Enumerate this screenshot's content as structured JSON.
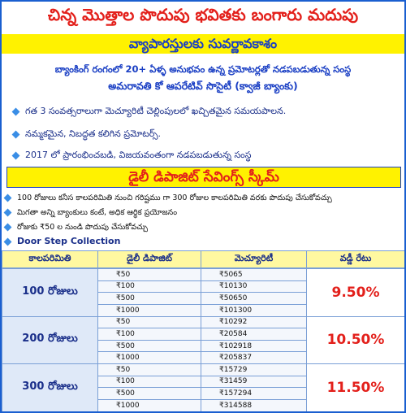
{
  "header": {
    "title": "చిన్న మొత్తాల పొదుపు భవితకు బంగారు మదుపు",
    "subtitle": "వ్యాపారస్తులకు సువర్ణావకాశం",
    "intro": [
      "బ్యాంకింగ్ రంగంలో 20+ ఏళ్ళ అనుభవం ఉన్న ప్రమోటర్లతో నడపబడుతున్న సంస్థ",
      "అమరావతి కో ఆపరేటివ్ సొసైటీ (క్వాజీ బ్యాంకు)"
    ],
    "highlights": [
      "గత 3 సంవత్సరాలుగా మెచ్యూరిటీ చెల్లింపులలో ఖచ్చితమైన సమయపాలన.",
      "నమ్మకమైన, నిబద్ధత కలిగిన ప్రమోటర్స్.",
      "2017 లో ప్రారంభించబడి, విజయవంతంగా నడపబడుతున్న సంస్థ"
    ]
  },
  "scheme": {
    "title": "డైలీ డిపాజిట్ సేవింగ్స్ స్కీమ్",
    "features": [
      "100 రోజులు కనీస కాలపరిమితి నుంచి గరిష్టము గా 300 రోజుల కాలపరిమితి వరకు పొదుపు చేసుకోవచ్చు",
      "మిగతా అన్ని బ్యాంకులు కంటే, అధిక ఆర్థిక ప్రయోజనం",
      "రోజుకు ₹50 ల నుండి పొదుపు చేసుకోవచ్చు",
      "Door Step Collection"
    ]
  },
  "table": {
    "columns": [
      "కాలపరిమితి",
      "డైలీ డిపాజిట్",
      "మెచ్యూరిటీ",
      "వడ్డీ రేటు"
    ],
    "rows": [
      {
        "period": "100 రోజులు",
        "rate": "9.50%",
        "plans": [
          [
            "₹50",
            "₹5065"
          ],
          [
            "₹100",
            "₹10130"
          ],
          [
            "₹500",
            "₹50650"
          ],
          [
            "₹1000",
            "₹101300"
          ]
        ]
      },
      {
        "period": "200 రోజులు",
        "rate": "10.50%",
        "plans": [
          [
            "₹50",
            "₹10292"
          ],
          [
            "₹100",
            "₹20584"
          ],
          [
            "₹500",
            "₹102918"
          ],
          [
            "₹1000",
            "₹205837"
          ]
        ]
      },
      {
        "period": "300 రోజులు",
        "rate": "11.50%",
        "plans": [
          [
            "₹50",
            "₹15729"
          ],
          [
            "₹100",
            "₹31459"
          ],
          [
            "₹500",
            "₹157294"
          ],
          [
            "₹1000",
            "₹314588"
          ]
        ]
      }
    ]
  }
}
